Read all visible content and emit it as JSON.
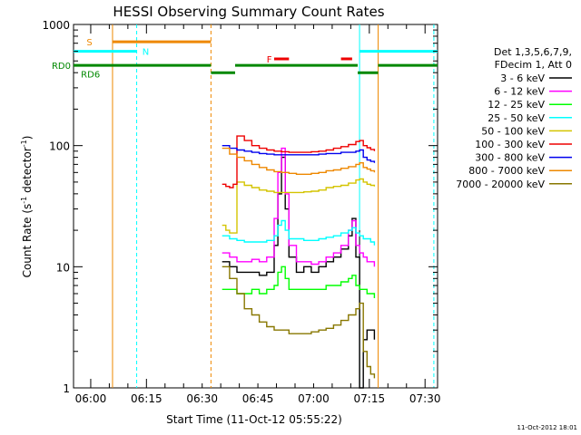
{
  "chart_data": {
    "type": "line",
    "title": "HESSI Observing Summary Count Rates",
    "xlabel": "Start Time (11-Oct-12 05:55:22)",
    "ylabel_main": "Count Rate (s",
    "ylabel_sup1": "-1",
    "ylabel_mid": " detector",
    "ylabel_sup2": "-1",
    "ylabel_end": ")",
    "y_scale": "log",
    "ylim": [
      1,
      1000
    ],
    "y_ticks": [
      {
        "value": 1,
        "label": "1"
      },
      {
        "value": 10,
        "label": "10"
      },
      {
        "value": 100,
        "label": "100"
      },
      {
        "value": 1000,
        "label": "1000"
      }
    ],
    "x_range_minutes": [
      0,
      98
    ],
    "x_ticks": [
      {
        "minute": 4.63,
        "label": "06:00"
      },
      {
        "minute": 19.63,
        "label": "06:15"
      },
      {
        "minute": 34.63,
        "label": "06:30"
      },
      {
        "minute": 49.63,
        "label": "06:45"
      },
      {
        "minute": 64.63,
        "label": "07:00"
      },
      {
        "minute": 79.63,
        "label": "07:15"
      },
      {
        "minute": 94.63,
        "label": "07:30"
      }
    ],
    "legend": {
      "header1": "Det 1,3,5,6,7,9,",
      "header2": "FDecim 1, Att 0",
      "entries": [
        {
          "label": "3 - 6 keV",
          "color": "#000000"
        },
        {
          "label": "6 - 12 keV",
          "color": "#ff00ff"
        },
        {
          "label": "12 - 25 keV",
          "color": "#00ff00"
        },
        {
          "label": "25 - 50 keV",
          "color": "#00ffff"
        },
        {
          "label": "50 - 100 keV",
          "color": "#d4c400"
        },
        {
          "label": "100 - 300 keV",
          "color": "#ee0000"
        },
        {
          "label": "300 - 800 keV",
          "color": "#0000ee"
        },
        {
          "label": "800 - 7000 keV",
          "color": "#ee8800"
        },
        {
          "label": "7000 - 20000 keV",
          "color": "#887700"
        }
      ]
    },
    "flags": [
      {
        "label": "S",
        "color": "#ee8800",
        "label_minute": 3.5,
        "label_level": 720,
        "segments": [
          [
            10.5,
            37.0
          ]
        ],
        "level": 720
      },
      {
        "label": "N",
        "color": "#00ffff",
        "label_minute": 18.5,
        "label_level": 600,
        "segments": [
          [
            0.0,
            17.0
          ],
          [
            77.0,
            98.0
          ]
        ],
        "level": 600
      },
      {
        "label": "F",
        "color": "#ee0000",
        "label_minute": 52.0,
        "label_level": 520,
        "segments": [
          [
            54.0,
            58.0
          ],
          [
            72.0,
            75.0
          ]
        ],
        "level": 520
      },
      {
        "label": "RD0",
        "color": "#008800",
        "label_minute": -1,
        "label_level": 460,
        "segments": [
          [
            0.0,
            37.0
          ],
          [
            43.5,
            76.5
          ],
          [
            82.0,
            98.0
          ]
        ],
        "level": 460,
        "dip_segments": [
          [
            37.0,
            43.5
          ],
          [
            76.5,
            82.0
          ]
        ],
        "dip_level": 400
      },
      {
        "label": "RD6",
        "color": "#008800",
        "label_minute": 2.0,
        "label_level": 390,
        "segments": [],
        "level": 390
      }
    ],
    "vertical_lines": [
      {
        "minute": 10.5,
        "color": "#ee8800",
        "style": "solid"
      },
      {
        "minute": 17.0,
        "color": "#00ffff",
        "style": "dashed"
      },
      {
        "minute": 37.0,
        "color": "#ee8800",
        "style": "dashed"
      },
      {
        "minute": 77.0,
        "color": "#00ffff",
        "style": "solid"
      },
      {
        "minute": 82.0,
        "color": "#ee8800",
        "style": "solid"
      },
      {
        "minute": 97.0,
        "color": "#00ffff",
        "style": "dashed"
      }
    ],
    "data_window_minutes": [
      40.0,
      81.0
    ],
    "series": [
      {
        "name": "3 - 6 keV",
        "color": "#000000",
        "points": [
          [
            40,
            11
          ],
          [
            42,
            10
          ],
          [
            44,
            9
          ],
          [
            46,
            9
          ],
          [
            48,
            9
          ],
          [
            50,
            8.5
          ],
          [
            52,
            9
          ],
          [
            54,
            15
          ],
          [
            55,
            40
          ],
          [
            56,
            80
          ],
          [
            57,
            30
          ],
          [
            58,
            12
          ],
          [
            60,
            9
          ],
          [
            62,
            10
          ],
          [
            64,
            9
          ],
          [
            66,
            10
          ],
          [
            68,
            11
          ],
          [
            70,
            12
          ],
          [
            72,
            14
          ],
          [
            74,
            18
          ],
          [
            75,
            25
          ],
          [
            76,
            12
          ],
          [
            77,
            1
          ],
          [
            78,
            2.5
          ],
          [
            79,
            3
          ],
          [
            80,
            3
          ],
          [
            81,
            2.5
          ]
        ]
      },
      {
        "name": "6 - 12 keV",
        "color": "#ff00ff",
        "points": [
          [
            40,
            13
          ],
          [
            42,
            12
          ],
          [
            44,
            11
          ],
          [
            46,
            11
          ],
          [
            48,
            11.5
          ],
          [
            50,
            11
          ],
          [
            52,
            12
          ],
          [
            54,
            25
          ],
          [
            55,
            60
          ],
          [
            56,
            95
          ],
          [
            57,
            40
          ],
          [
            58,
            15
          ],
          [
            60,
            11
          ],
          [
            62,
            11
          ],
          [
            64,
            10.5
          ],
          [
            66,
            11
          ],
          [
            68,
            12
          ],
          [
            70,
            13
          ],
          [
            72,
            15
          ],
          [
            74,
            20
          ],
          [
            75,
            24
          ],
          [
            76,
            15
          ],
          [
            77,
            13
          ],
          [
            78,
            12
          ],
          [
            79,
            11
          ],
          [
            80,
            11
          ],
          [
            81,
            10
          ]
        ]
      },
      {
        "name": "12 - 25 keV",
        "color": "#00ff00",
        "points": [
          [
            40,
            6.5
          ],
          [
            42,
            6.5
          ],
          [
            44,
            6
          ],
          [
            46,
            6
          ],
          [
            48,
            6.5
          ],
          [
            50,
            6
          ],
          [
            52,
            6.5
          ],
          [
            54,
            7
          ],
          [
            55,
            9
          ],
          [
            56,
            10
          ],
          [
            57,
            8
          ],
          [
            58,
            6.5
          ],
          [
            60,
            6.5
          ],
          [
            62,
            6.5
          ],
          [
            64,
            6.5
          ],
          [
            66,
            6.5
          ],
          [
            68,
            7
          ],
          [
            70,
            7
          ],
          [
            72,
            7.5
          ],
          [
            74,
            8
          ],
          [
            75,
            8.5
          ],
          [
            76,
            7
          ],
          [
            77,
            6.5
          ],
          [
            78,
            6.5
          ],
          [
            79,
            6
          ],
          [
            80,
            6
          ],
          [
            81,
            5.5
          ]
        ]
      },
      {
        "name": "25 - 50 keV",
        "color": "#00ffff",
        "points": [
          [
            40,
            18
          ],
          [
            42,
            17
          ],
          [
            44,
            16.5
          ],
          [
            46,
            16
          ],
          [
            48,
            16
          ],
          [
            50,
            16
          ],
          [
            52,
            16.5
          ],
          [
            54,
            18
          ],
          [
            55,
            22
          ],
          [
            56,
            24
          ],
          [
            57,
            20
          ],
          [
            58,
            17
          ],
          [
            60,
            17
          ],
          [
            62,
            16.5
          ],
          [
            64,
            16.5
          ],
          [
            66,
            17
          ],
          [
            68,
            17.5
          ],
          [
            70,
            18
          ],
          [
            72,
            19
          ],
          [
            74,
            20
          ],
          [
            75,
            21
          ],
          [
            76,
            19
          ],
          [
            77,
            18
          ],
          [
            78,
            17
          ],
          [
            79,
            17
          ],
          [
            80,
            16
          ],
          [
            81,
            15
          ]
        ]
      },
      {
        "name": "50 - 100 keV",
        "color": "#d4c400",
        "points": [
          [
            40,
            22
          ],
          [
            41,
            20
          ],
          [
            42,
            19
          ],
          [
            44,
            50
          ],
          [
            46,
            47
          ],
          [
            48,
            45
          ],
          [
            50,
            43
          ],
          [
            52,
            42
          ],
          [
            54,
            41
          ],
          [
            56,
            41
          ],
          [
            58,
            41
          ],
          [
            60,
            41
          ],
          [
            62,
            41.5
          ],
          [
            64,
            42
          ],
          [
            66,
            43
          ],
          [
            68,
            45
          ],
          [
            70,
            46
          ],
          [
            72,
            47
          ],
          [
            74,
            49
          ],
          [
            76,
            52
          ],
          [
            77,
            53
          ],
          [
            78,
            50
          ],
          [
            79,
            48
          ],
          [
            80,
            47
          ],
          [
            81,
            46
          ]
        ]
      },
      {
        "name": "100 - 300 keV",
        "color": "#ee0000",
        "points": [
          [
            40,
            48
          ],
          [
            41,
            46
          ],
          [
            42,
            45
          ],
          [
            43,
            48
          ],
          [
            44,
            120
          ],
          [
            46,
            110
          ],
          [
            48,
            100
          ],
          [
            50,
            95
          ],
          [
            52,
            92
          ],
          [
            54,
            90
          ],
          [
            56,
            89
          ],
          [
            58,
            88
          ],
          [
            60,
            88
          ],
          [
            62,
            88
          ],
          [
            64,
            89
          ],
          [
            66,
            90
          ],
          [
            68,
            92
          ],
          [
            70,
            95
          ],
          [
            72,
            98
          ],
          [
            74,
            102
          ],
          [
            76,
            108
          ],
          [
            77,
            110
          ],
          [
            78,
            100
          ],
          [
            79,
            96
          ],
          [
            80,
            93
          ],
          [
            81,
            90
          ]
        ]
      },
      {
        "name": "300 - 800 keV",
        "color": "#0000ee",
        "points": [
          [
            40,
            100
          ],
          [
            42,
            95
          ],
          [
            44,
            92
          ],
          [
            46,
            90
          ],
          [
            48,
            88
          ],
          [
            50,
            86
          ],
          [
            52,
            85
          ],
          [
            54,
            84
          ],
          [
            56,
            84
          ],
          [
            58,
            84
          ],
          [
            60,
            84
          ],
          [
            62,
            84
          ],
          [
            64,
            84
          ],
          [
            66,
            85
          ],
          [
            68,
            86
          ],
          [
            70,
            86
          ],
          [
            72,
            88
          ],
          [
            74,
            88
          ],
          [
            76,
            90
          ],
          [
            77,
            92
          ],
          [
            78,
            80
          ],
          [
            79,
            76
          ],
          [
            80,
            74
          ],
          [
            81,
            72
          ]
        ]
      },
      {
        "name": "800 - 7000 keV",
        "color": "#ee8800",
        "points": [
          [
            40,
            95
          ],
          [
            42,
            85
          ],
          [
            44,
            80
          ],
          [
            46,
            75
          ],
          [
            48,
            70
          ],
          [
            50,
            66
          ],
          [
            52,
            63
          ],
          [
            54,
            61
          ],
          [
            56,
            60
          ],
          [
            58,
            59
          ],
          [
            60,
            58
          ],
          [
            62,
            58
          ],
          [
            64,
            59
          ],
          [
            66,
            60
          ],
          [
            68,
            62
          ],
          [
            70,
            63
          ],
          [
            72,
            65
          ],
          [
            74,
            67
          ],
          [
            76,
            70
          ],
          [
            77,
            72
          ],
          [
            78,
            66
          ],
          [
            79,
            64
          ],
          [
            80,
            62
          ],
          [
            81,
            60
          ]
        ]
      },
      {
        "name": "7000 - 20000 keV",
        "color": "#887700",
        "points": [
          [
            40,
            10
          ],
          [
            42,
            8
          ],
          [
            44,
            6
          ],
          [
            46,
            4.5
          ],
          [
            48,
            4
          ],
          [
            50,
            3.5
          ],
          [
            52,
            3.2
          ],
          [
            54,
            3
          ],
          [
            56,
            3
          ],
          [
            58,
            2.8
          ],
          [
            60,
            2.8
          ],
          [
            62,
            2.8
          ],
          [
            64,
            2.9
          ],
          [
            66,
            3
          ],
          [
            68,
            3.1
          ],
          [
            70,
            3.3
          ],
          [
            72,
            3.6
          ],
          [
            74,
            4
          ],
          [
            76,
            4.5
          ],
          [
            77,
            5
          ],
          [
            78,
            2
          ],
          [
            79,
            1.5
          ],
          [
            80,
            1.3
          ],
          [
            81,
            1.2
          ]
        ]
      }
    ],
    "grid": false,
    "legend_position": "right"
  },
  "stamp": "11-Oct-2012 18:01"
}
